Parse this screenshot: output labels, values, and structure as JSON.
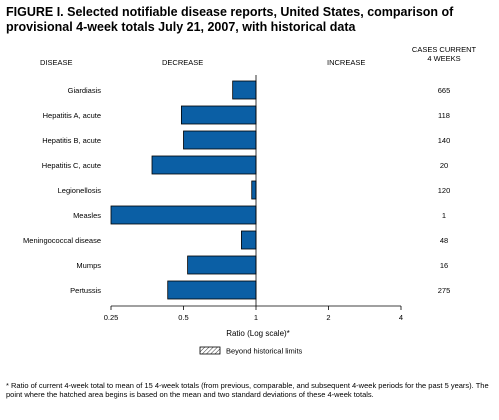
{
  "figure": {
    "title": "FIGURE I. Selected notifiable disease reports, United States, comparison of provisional 4-week totals July 21, 2007, with historical data",
    "col_disease": "DISEASE",
    "col_decrease": "DECREASE",
    "col_increase": "INCREASE",
    "col_cases_line1": "CASES CURRENT",
    "col_cases_line2": "4 WEEKS",
    "footnote": "* Ratio of current 4-week total to mean of 15 4-week totals (from previous, comparable, and subsequent 4-week periods for the past 5 years). The point where the hatched area begins is based on the mean and two standard deviations of these 4-week totals."
  },
  "colors": {
    "bar_fill": "#0b5fa5",
    "bar_stroke": "#000000"
  },
  "chart_data": {
    "type": "bar",
    "orientation": "horizontal",
    "xscale": "log2",
    "baseline": 1,
    "xlabel": "Ratio (Log scale)*",
    "xlim": [
      0.25,
      4
    ],
    "xticks": [
      0.25,
      0.5,
      1,
      2,
      4
    ],
    "xtick_labels": [
      "0.25",
      "0.5",
      "1",
      "2",
      "4"
    ],
    "legend": {
      "label": "Beyond historical limits",
      "placement": "bottom-center",
      "swatch": "hatched"
    },
    "grid": false,
    "categories": [
      "Giardiasis",
      "Hepatitis A, acute",
      "Hepatitis B, acute",
      "Hepatitis C, acute",
      "Legionellosis",
      "Measles",
      "Meningococcal disease",
      "Mumps",
      "Pertussis"
    ],
    "values": [
      0.8,
      0.49,
      0.5,
      0.37,
      0.96,
      0.25,
      0.87,
      0.52,
      0.43
    ],
    "cases": [
      "665",
      "118",
      "140",
      "20",
      "120",
      "1",
      "48",
      "16",
      "275"
    ]
  }
}
